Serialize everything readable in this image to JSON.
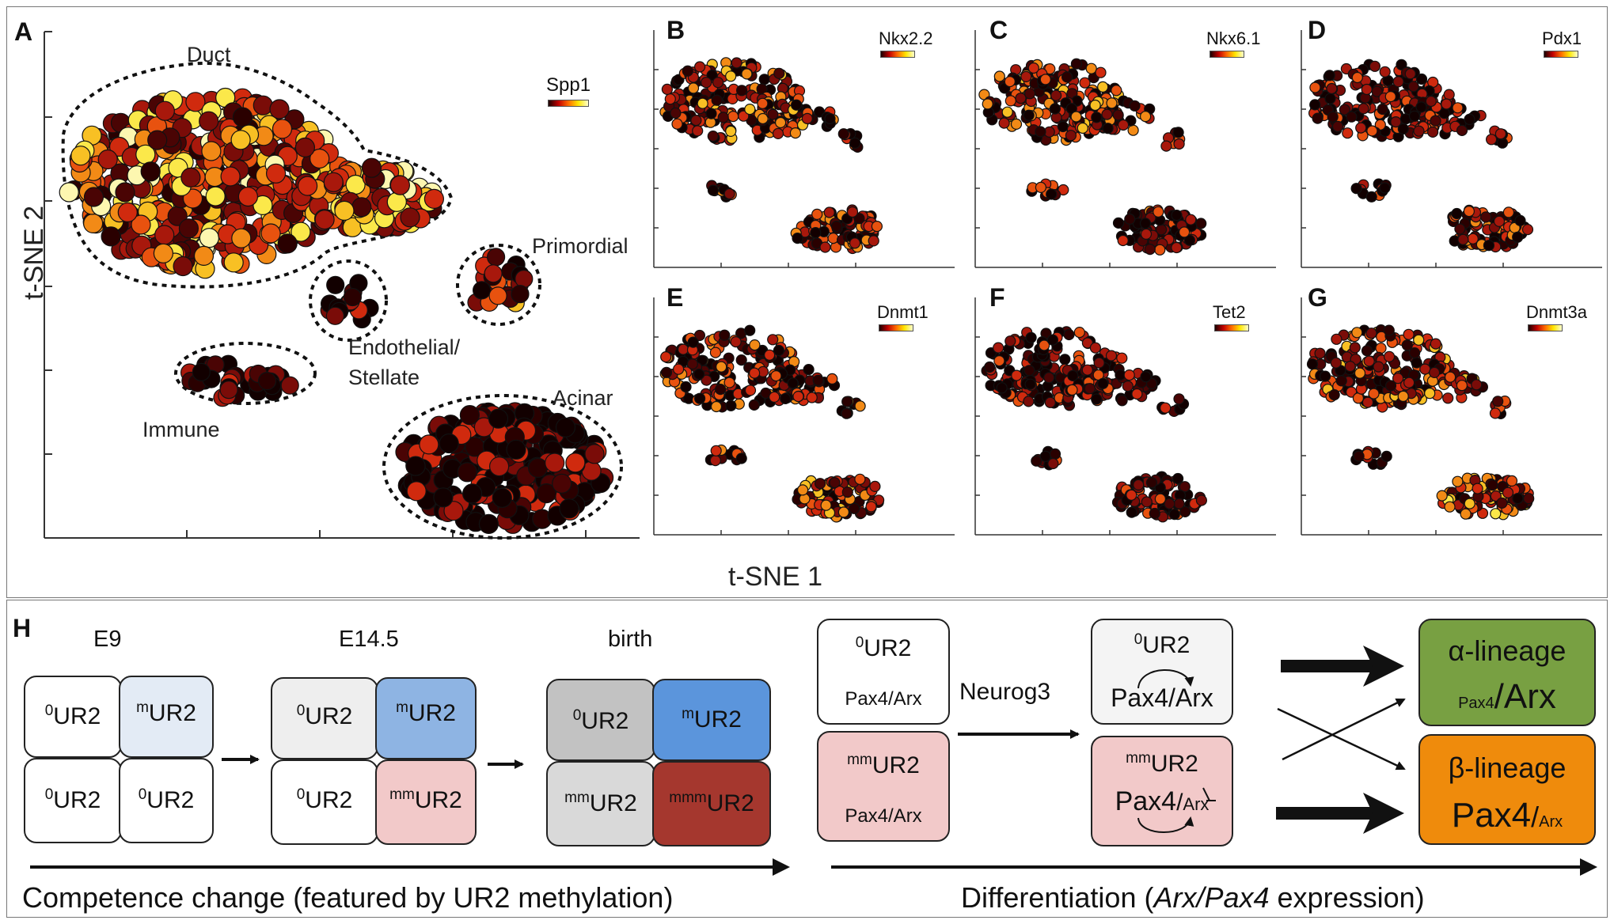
{
  "panel_a": {
    "label": "A",
    "x_axis_label": "t-SNE 1",
    "y_axis_label": "t-SNE 2",
    "legend": "Spp1",
    "clusters": [
      "Duct",
      "Primordial",
      "Endothelial/",
      "Stellate",
      "Immune",
      "Acinar"
    ]
  },
  "small_panels": [
    {
      "label": "B",
      "gene": "Nkx2.2"
    },
    {
      "label": "C",
      "gene": "Nkx6.1"
    },
    {
      "label": "D",
      "gene": "Pdx1"
    },
    {
      "label": "E",
      "gene": "Dnmt1"
    },
    {
      "label": "F",
      "gene": "Tet2"
    },
    {
      "label": "G",
      "gene": "Dnmt3a"
    }
  ],
  "panel_h": {
    "label": "H",
    "stages": [
      "E9",
      "E14.5",
      "birth"
    ],
    "sup_0": "0",
    "sup_m": "m",
    "sup_mm": "mm",
    "sup_mmm": "mmm",
    "ur2": "UR2",
    "pax4arx": "Pax4/Arx",
    "pax4": "Pax4",
    "arx": "Arx",
    "slash": "/",
    "neurog3": "Neurog3",
    "alpha_lineage": "α-lineage",
    "beta_lineage": "β-lineage",
    "competence_caption": "Competence change (featured by UR2 methylation)",
    "diff_prefix": "Differentiation (",
    "diff_italic": "Arx/Pax4",
    "diff_suffix": " expression)"
  },
  "colors": {
    "white": "#ffffff",
    "light_blue": "#e3ebf5",
    "light_gray": "#eeeeee",
    "blue": "#8eb4e3",
    "pink": "#f2c9c9",
    "gray": "#c2c2c2",
    "strong_blue": "#5b95dc",
    "dark_red": "#a5372e",
    "pale_gray": "#d9d9d9",
    "green": "#78a042",
    "orange": "#ef8b0c"
  }
}
